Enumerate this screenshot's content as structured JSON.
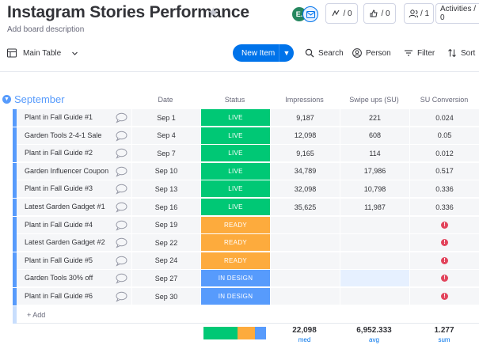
{
  "board": {
    "title": "Instagram Stories Performance",
    "description": "Add board description"
  },
  "header": {
    "avatar_initials": "E.",
    "activity_count_1": "/ 0",
    "activity_count_2": "/ 0",
    "members_count": "/ 1",
    "activities_label": "Activities / 0"
  },
  "toolbar": {
    "view_label": "Main Table",
    "new_item_label": "New Item",
    "search_label": "Search",
    "person_label": "Person",
    "filter_label": "Filter",
    "sort_label": "Sort"
  },
  "group": {
    "title": "September",
    "color": "#579bfc"
  },
  "columns": {
    "date": "Date",
    "status": "Status",
    "impressions": "Impressions",
    "swipe_ups": "Swipe ups (SU)",
    "su_conversion": "SU Conversion"
  },
  "status_colors": {
    "LIVE": "#00c875",
    "READY": "#fdab3d",
    "IN DESIGN": "#579bfc"
  },
  "rows": [
    {
      "name": "Plant in Fall Guide #1",
      "date": "Sep 1",
      "status": "LIVE",
      "impressions": "9,187",
      "swipe_ups": "221",
      "su_conversion": "0.024"
    },
    {
      "name": "Garden Tools 2-4-1 Sale",
      "date": "Sep 4",
      "status": "LIVE",
      "impressions": "12,098",
      "swipe_ups": "608",
      "su_conversion": "0.05"
    },
    {
      "name": "Plant in Fall Guide #2",
      "date": "Sep 7",
      "status": "LIVE",
      "impressions": "9,165",
      "swipe_ups": "114",
      "su_conversion": "0.012"
    },
    {
      "name": "Garden Influencer Coupon",
      "date": "Sep 10",
      "status": "LIVE",
      "impressions": "34,789",
      "swipe_ups": "17,986",
      "su_conversion": "0.517"
    },
    {
      "name": "Plant in Fall Guide #3",
      "date": "Sep 13",
      "status": "LIVE",
      "impressions": "32,098",
      "swipe_ups": "10,798",
      "su_conversion": "0.336"
    },
    {
      "name": "Latest Garden Gadget #1",
      "date": "Sep 16",
      "status": "LIVE",
      "impressions": "35,625",
      "swipe_ups": "11,987",
      "su_conversion": "0.336"
    },
    {
      "name": "Plant in Fall Guide #4",
      "date": "Sep 19",
      "status": "READY",
      "impressions": "",
      "swipe_ups": "",
      "su_conversion": "!"
    },
    {
      "name": "Latest Garden Gadget #2",
      "date": "Sep 22",
      "status": "READY",
      "impressions": "",
      "swipe_ups": "",
      "su_conversion": "!"
    },
    {
      "name": "Plant in Fall Guide #5",
      "date": "Sep 24",
      "status": "READY",
      "impressions": "",
      "swipe_ups": "",
      "su_conversion": "!"
    },
    {
      "name": "Garden Tools 30% off",
      "date": "Sep 27",
      "status": "IN DESIGN",
      "impressions": "",
      "swipe_ups": "",
      "su_conversion": "!"
    },
    {
      "name": "Plant in Fall Guide #6",
      "date": "Sep 30",
      "status": "IN DESIGN",
      "impressions": "",
      "swipe_ups": "",
      "su_conversion": "!"
    }
  ],
  "add_row_label": "+ Add",
  "summary": {
    "status_distribution": [
      {
        "status": "LIVE",
        "count": 6
      },
      {
        "status": "READY",
        "count": 3
      },
      {
        "status": "IN DESIGN",
        "count": 2
      }
    ],
    "impressions_value": "22,098",
    "impressions_label": "med",
    "swipe_ups_value": "6,952.333",
    "swipe_ups_label": "avg",
    "su_conversion_value": "1.277",
    "su_conversion_label": "sum"
  }
}
